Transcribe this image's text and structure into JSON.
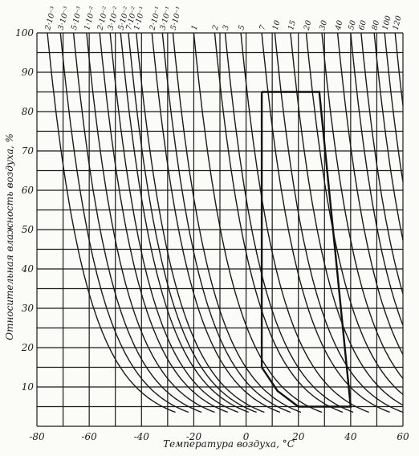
{
  "chart_data": {
    "type": "line",
    "xlabel": "Температура воздуха, °С",
    "ylabel": "Относительная влажность воздуха, %",
    "xlim": [
      -80,
      60
    ],
    "ylim": [
      0,
      100
    ],
    "x_ticks": [
      "-80",
      "-60",
      "-40",
      "-20",
      "0",
      "20",
      "40",
      "60"
    ],
    "y_ticks": [
      "10",
      "20",
      "30",
      "40",
      "50",
      "60",
      "70",
      "80",
      "90",
      "100"
    ],
    "grid": true,
    "curve_labels": [
      {
        "label": "2·10⁻³",
        "x_at_100": -76
      },
      {
        "label": "3·10⁻³",
        "x_at_100": -71
      },
      {
        "label": "5·10⁻³",
        "x_at_100": -66
      },
      {
        "label": "1·10⁻²",
        "x_at_100": -61
      },
      {
        "label": "2·10⁻²",
        "x_at_100": -56
      },
      {
        "label": "3·10⁻²",
        "x_at_100": -52
      },
      {
        "label": "5·10⁻²",
        "x_at_100": -48
      },
      {
        "label": "7·10⁻²",
        "x_at_100": -45
      },
      {
        "label": "1·10⁻¹",
        "x_at_100": -42
      },
      {
        "label": "2·10⁻¹",
        "x_at_100": -36
      },
      {
        "label": "3·10⁻¹",
        "x_at_100": -32
      },
      {
        "label": "5·10⁻¹",
        "x_at_100": -28
      },
      {
        "label": "1",
        "x_at_100": -20
      },
      {
        "label": "2",
        "x_at_100": -12
      },
      {
        "label": "3",
        "x_at_100": -8
      },
      {
        "label": "5",
        "x_at_100": -2
      },
      {
        "label": "7",
        "x_at_100": 6
      },
      {
        "label": "10",
        "x_at_100": 11
      },
      {
        "label": "15",
        "x_at_100": 17
      },
      {
        "label": "20",
        "x_at_100": 23
      },
      {
        "label": "30",
        "x_at_100": 29
      },
      {
        "label": "40",
        "x_at_100": 35
      },
      {
        "label": "50",
        "x_at_100": 40
      },
      {
        "label": "60",
        "x_at_100": 44
      },
      {
        "label": "80",
        "x_at_100": 49
      },
      {
        "label": "100",
        "x_at_100": 53
      },
      {
        "label": "120",
        "x_at_100": 57
      }
    ],
    "highlight_path": [
      [
        6,
        85
      ],
      [
        6,
        15
      ],
      [
        12,
        9
      ],
      [
        20,
        5
      ],
      [
        40,
        5
      ],
      [
        28,
        85
      ],
      [
        6,
        85
      ]
    ]
  }
}
